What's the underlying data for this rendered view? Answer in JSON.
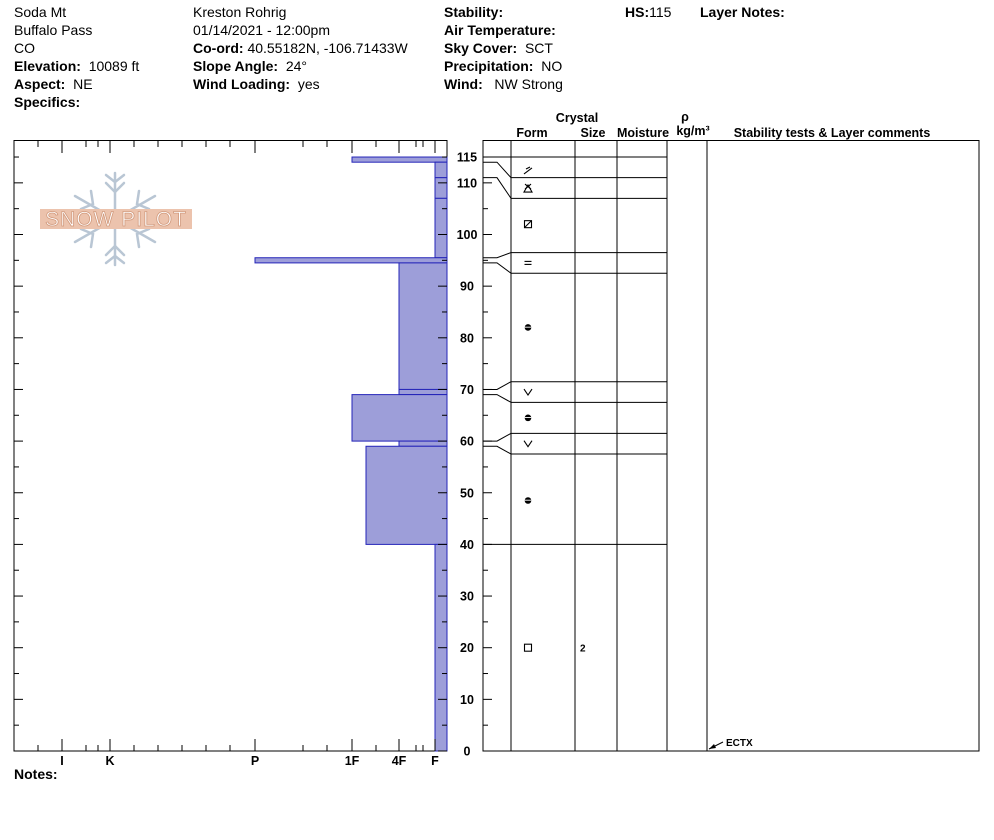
{
  "header": {
    "location": "Soda Mt",
    "area": "Buffalo Pass",
    "state": "CO",
    "elevation_label": "Elevation:",
    "elevation": "10089 ft",
    "aspect_label": "Aspect:",
    "aspect": "NE",
    "specifics_label": "Specifics:",
    "observer": "Kreston Rohrig",
    "datetime": "01/14/2021 - 12:00pm",
    "coord_label": "Co-ord:",
    "coord": "40.55182N, -106.71433W",
    "slope_label": "Slope Angle:",
    "slope": "24°",
    "wind_loading_label": "Wind Loading:",
    "wind_loading": "yes",
    "stability_label": "Stability:",
    "air_temp_label": "Air Temperature:",
    "sky_label": "Sky Cover:",
    "sky": "SCT",
    "precip_label": "Precipitation:",
    "precip": "NO",
    "wind_label": "Wind:",
    "wind": "NW Strong",
    "hs_label": "HS:",
    "hs": "115",
    "layer_notes_label": "Layer Notes:"
  },
  "logo_text": "SNOW PILOT",
  "notes_label": "Notes:",
  "table_headers": {
    "crystal": "Crystal",
    "form": "Form",
    "size": "Size",
    "moisture": "Moisture",
    "rho": "ρ",
    "density_unit": "kg/m³",
    "comments": "Stability tests & Layer comments"
  },
  "chart_data": {
    "type": "bar",
    "title": "",
    "ylabel": "",
    "xlabel": "",
    "ylim": [
      0,
      115
    ],
    "y_ticks": [
      0,
      10,
      20,
      30,
      40,
      50,
      60,
      70,
      80,
      90,
      100,
      110,
      115
    ],
    "hardness_scale": [
      "I",
      "K",
      "P",
      "1F",
      "4F",
      "F"
    ],
    "fill_color": "#9d9ed9",
    "edge_color": "#2424b8",
    "layers": [
      {
        "top": 115,
        "bottom": 114,
        "hardness": "1F"
      },
      {
        "top": 114,
        "bottom": 111,
        "hardness": "F"
      },
      {
        "top": 111,
        "bottom": 107,
        "hardness": "F"
      },
      {
        "top": 107,
        "bottom": 95.5,
        "hardness": "F"
      },
      {
        "top": 95.5,
        "bottom": 94.5,
        "hardness": "P"
      },
      {
        "top": 94.5,
        "bottom": 70,
        "hardness": "4F"
      },
      {
        "top": 70,
        "bottom": 69,
        "hardness": "4F"
      },
      {
        "top": 69,
        "bottom": 60,
        "hardness": "1F"
      },
      {
        "top": 60,
        "bottom": 59,
        "hardness": "4F"
      },
      {
        "top": 59,
        "bottom": 40,
        "hardness": "1F-"
      },
      {
        "top": 40,
        "bottom": 0,
        "hardness": "F"
      }
    ],
    "layer_boundaries_in_profile": [
      115,
      111,
      107,
      96.5,
      92.5,
      71.5,
      67.5,
      61.5,
      57.5,
      40
    ],
    "crystal_forms": [
      {
        "depth": 112.3,
        "form": "decomposing-fragments"
      },
      {
        "depth": 109,
        "form": "surface-hoar"
      },
      {
        "depth": 102,
        "form": "mixed-faceted-rounded"
      },
      {
        "depth": 94.5,
        "form": "crust"
      },
      {
        "depth": 82,
        "form": "melt-form"
      },
      {
        "depth": 69.5,
        "form": "depth-hoar"
      },
      {
        "depth": 64.5,
        "form": "melt-form"
      },
      {
        "depth": 59.5,
        "form": "depth-hoar"
      },
      {
        "depth": 48.5,
        "form": "melt-form"
      },
      {
        "depth": 20,
        "form": "faceted"
      }
    ],
    "crystal_sizes": [
      {
        "depth": 20,
        "size": "2"
      }
    ],
    "stability_tests": [
      {
        "depth": 0,
        "label": "ECTX"
      }
    ]
  }
}
